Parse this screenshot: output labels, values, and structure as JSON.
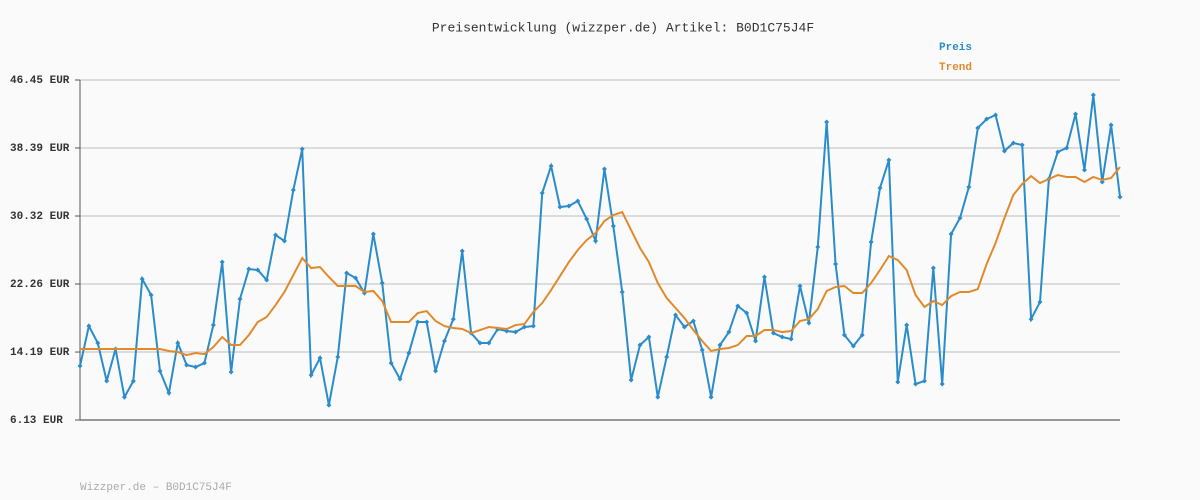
{
  "chart_data": {
    "type": "line",
    "title": "Preisentwicklung (wizzper.de) Artikel: B0D1C75J4F",
    "footer": "Wizzper.de – B0D1C75J4F",
    "ylim": [
      6.13,
      46.45
    ],
    "yticks": [
      {
        "value": 6.13,
        "label": "6.13 EUR"
      },
      {
        "value": 14.19,
        "label": "14.19 EUR"
      },
      {
        "value": 22.26,
        "label": "22.26 EUR"
      },
      {
        "value": 30.32,
        "label": "30.32 EUR"
      },
      {
        "value": 38.39,
        "label": "38.39 EUR"
      },
      {
        "value": 46.45,
        "label": "46.45 EUR"
      }
    ],
    "grid": true,
    "series": [
      {
        "name": "Preis",
        "color": "#2a8ccb",
        "markers": true,
        "values": [
          12.53,
          17.27,
          15.26,
          10.75,
          14.55,
          8.85,
          10.75,
          22.85,
          20.95,
          11.94,
          9.33,
          15.26,
          12.65,
          12.41,
          12.89,
          17.39,
          24.86,
          11.82,
          20.48,
          24.03,
          23.92,
          22.73,
          28.07,
          27.36,
          33.4,
          38.27,
          11.46,
          13.48,
          7.9,
          13.6,
          23.56,
          22.97,
          21.19,
          28.19,
          22.37,
          12.89,
          10.99,
          14.07,
          17.75,
          17.75,
          11.94,
          15.5,
          18.1,
          26.17,
          16.44,
          15.26,
          15.26,
          16.92,
          16.68,
          16.56,
          17.16,
          17.27,
          33.05,
          36.25,
          31.39,
          31.51,
          32.1,
          29.96,
          27.36,
          35.89,
          29.13,
          21.31,
          10.87,
          15.02,
          15.97,
          8.85,
          13.6,
          18.58,
          17.16,
          17.87,
          14.43,
          8.85,
          15.02,
          16.56,
          19.65,
          18.82,
          15.5,
          23.09,
          16.44,
          15.97,
          15.73,
          22.02,
          17.63,
          26.64,
          41.47,
          24.63,
          16.21,
          14.9,
          16.21,
          27.24,
          33.64,
          36.96,
          10.63,
          17.39,
          10.4,
          10.75,
          24.15,
          10.4,
          28.19,
          30.08,
          33.76,
          40.76,
          41.82,
          42.3,
          38.03,
          38.98,
          38.74,
          18.1,
          20.12,
          34.71,
          37.91,
          38.39,
          42.42,
          35.78,
          44.67,
          34.35,
          41.11,
          32.57
        ]
      },
      {
        "name": "Trend",
        "color": "#e08a2c",
        "markers": false,
        "values": [
          14.55,
          14.55,
          14.55,
          14.55,
          14.55,
          14.55,
          14.55,
          14.55,
          14.55,
          14.55,
          14.31,
          14.19,
          13.83,
          14.07,
          13.95,
          14.78,
          15.97,
          15.02,
          15.02,
          16.21,
          17.75,
          18.34,
          19.76,
          21.31,
          23.32,
          25.34,
          24.15,
          24.27,
          23.09,
          22.02,
          22.02,
          22.02,
          21.31,
          21.43,
          20.24,
          17.75,
          17.75,
          17.75,
          18.82,
          19.05,
          17.87,
          17.27,
          17.04,
          16.92,
          16.44,
          16.8,
          17.16,
          17.04,
          16.92,
          17.39,
          17.51,
          18.93,
          20.0,
          21.54,
          23.2,
          24.86,
          26.29,
          27.47,
          28.3,
          29.73,
          30.44,
          30.79,
          28.66,
          26.53,
          24.86,
          22.37,
          20.6,
          19.41,
          18.22,
          16.8,
          15.5,
          14.31,
          14.55,
          14.67,
          15.02,
          16.09,
          16.09,
          16.8,
          16.8,
          16.56,
          16.68,
          17.87,
          18.1,
          19.29,
          21.43,
          21.9,
          22.02,
          21.19,
          21.19,
          22.37,
          23.92,
          25.58,
          25.1,
          23.92,
          20.95,
          19.53,
          20.24,
          19.76,
          20.83,
          21.31,
          21.31,
          21.66,
          24.63,
          27.12,
          30.08,
          32.81,
          34.12,
          35.06,
          34.23,
          34.71,
          35.18,
          34.95,
          34.95,
          34.35,
          34.95,
          34.59,
          34.83,
          36.13
        ]
      }
    ]
  }
}
